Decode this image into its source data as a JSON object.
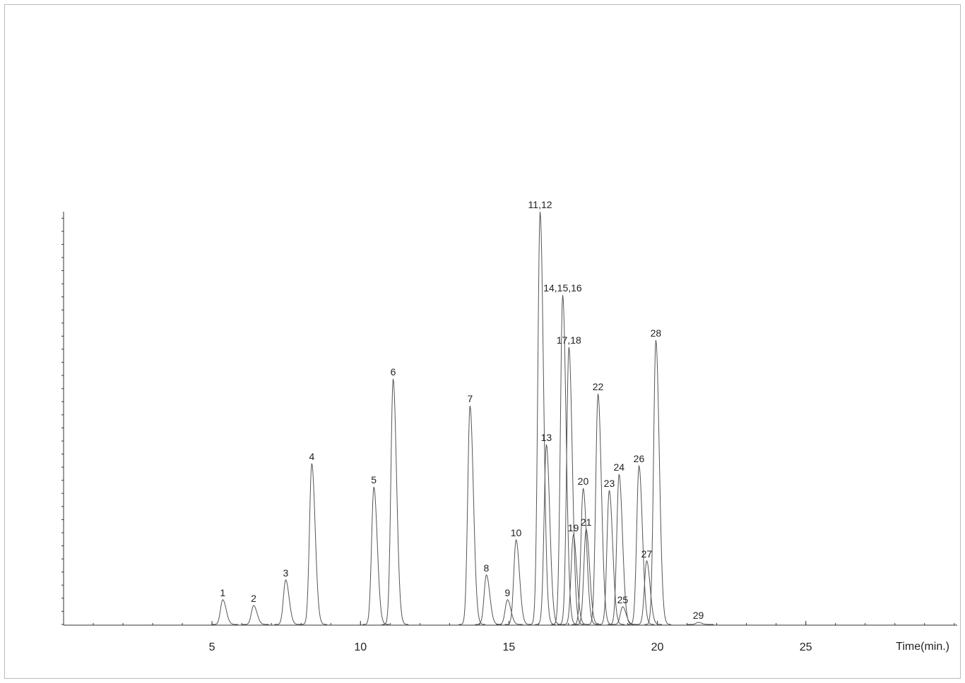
{
  "chart_data": {
    "type": "chromatogram",
    "x_label": "Time(min.)",
    "xlim": [
      0,
      30.1
    ],
    "xticks": [
      5,
      10,
      15,
      20,
      25
    ],
    "ylim": [
      0,
      100
    ],
    "color": "#555555",
    "peaks": [
      {
        "label": "1",
        "time": 5.36,
        "height": 6.0
      },
      {
        "label": "2",
        "time": 6.4,
        "height": 4.6
      },
      {
        "label": "3",
        "time": 7.48,
        "height": 10.8
      },
      {
        "label": "4",
        "time": 8.36,
        "height": 39.0
      },
      {
        "label": "5",
        "time": 10.45,
        "height": 33.3
      },
      {
        "label": "6",
        "time": 11.1,
        "height": 59.5
      },
      {
        "label": "7",
        "time": 13.69,
        "height": 53.0
      },
      {
        "label": "8",
        "time": 14.24,
        "height": 12.0
      },
      {
        "label": "9",
        "time": 14.95,
        "height": 6.0
      },
      {
        "label": "10",
        "time": 15.24,
        "height": 20.5
      },
      {
        "label": "11,12",
        "time": 16.05,
        "height": 100
      },
      {
        "label": "13",
        "time": 16.26,
        "height": 43.6
      },
      {
        "label": "14,15,16",
        "time": 16.81,
        "height": 79.8
      },
      {
        "label": "17,18",
        "time": 17.02,
        "height": 67.2
      },
      {
        "label": "19",
        "time": 17.17,
        "height": 21.7
      },
      {
        "label": "20",
        "time": 17.5,
        "height": 33.0
      },
      {
        "label": "21",
        "time": 17.6,
        "height": 23.1
      },
      {
        "label": "22",
        "time": 18.0,
        "height": 55.9
      },
      {
        "label": "23",
        "time": 18.38,
        "height": 32.5
      },
      {
        "label": "24",
        "time": 18.71,
        "height": 36.4
      },
      {
        "label": "25",
        "time": 18.83,
        "height": 4.3
      },
      {
        "label": "26",
        "time": 19.38,
        "height": 38.5
      },
      {
        "label": "27",
        "time": 19.64,
        "height": 15.4
      },
      {
        "label": "28",
        "time": 19.95,
        "height": 68.9
      },
      {
        "label": "29",
        "time": 21.38,
        "height": 0.5
      }
    ]
  }
}
